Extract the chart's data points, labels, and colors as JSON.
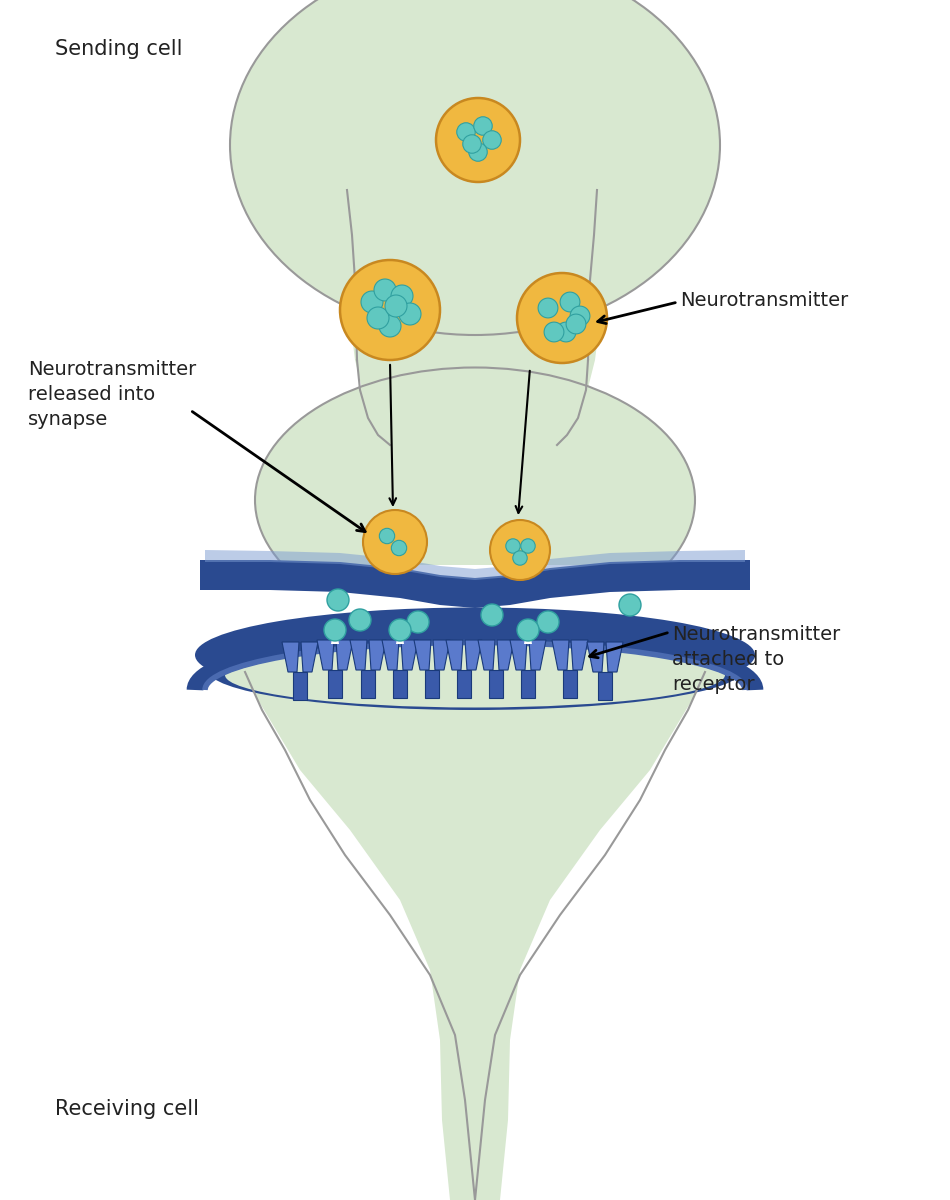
{
  "bg": "#ffffff",
  "cell_fill": "#d8e8d0",
  "cell_fill2": "#ccdfc4",
  "cell_outline": "#999999",
  "mem_dark": "#2a4a90",
  "mem_mid": "#4a6ab0",
  "mem_light_blue": "#7a9ad0",
  "vesicle_fill": "#f0b840",
  "vesicle_outline": "#c88820",
  "nt_fill": "#60c8c0",
  "nt_outline": "#30a0a0",
  "receptor_fill": "#3a5aaa",
  "receptor_fill2": "#5a7acc",
  "receptor_outline": "#1a3a7a",
  "text_color": "#222222",
  "arrow_color": "#111111",
  "synapse_gap_fill": "#ffffff",
  "label_sending": "Sending cell",
  "label_receiving": "Receiving cell",
  "label_nt": "Neurotransmitter",
  "label_released": "Neurotransmitter\nreleased into\nsynapse",
  "label_attached": "Neurotransmitter\nattached to\nreceptor"
}
